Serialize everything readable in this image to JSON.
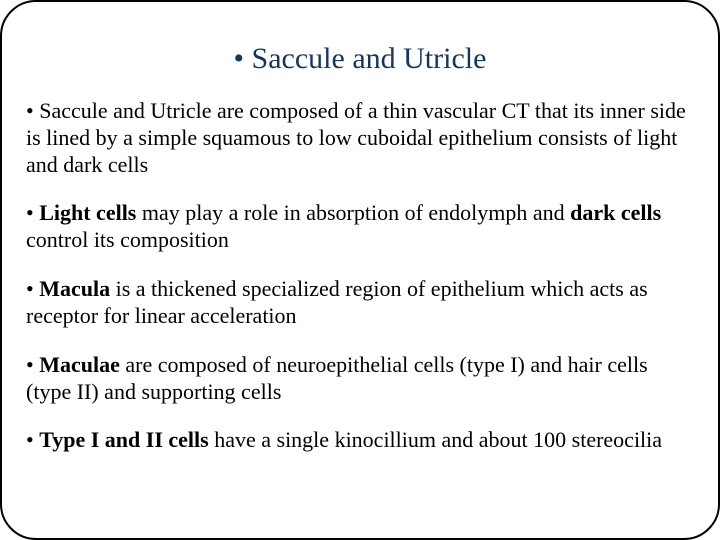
{
  "slide": {
    "title": "• Saccule and Utricle",
    "title_color": "#17365d",
    "title_fontsize": 30,
    "body_fontsize": 22,
    "text_color": "#000000",
    "background_color": "#ffffff",
    "border_color": "#000000",
    "border_radius": 36,
    "bullets": [
      {
        "prefix": "• ",
        "parts": [
          {
            "text": "Saccule and Utricle are composed of a thin vascular CT that its inner side is lined by a simple squamous to low cuboidal epithelium consists of light and dark cells",
            "bold": false
          }
        ]
      },
      {
        "prefix": "• ",
        "parts": [
          {
            "text": "Light cells",
            "bold": true
          },
          {
            "text": " may play a role in absorption of endolymph and ",
            "bold": false
          },
          {
            "text": "dark cells",
            "bold": true
          },
          {
            "text": " control its composition",
            "bold": false
          }
        ]
      },
      {
        "prefix": "• ",
        "parts": [
          {
            "text": "Macula",
            "bold": true
          },
          {
            "text": " is a thickened specialized region of epithelium which acts as receptor for linear acceleration",
            "bold": false
          }
        ]
      },
      {
        "prefix": "• ",
        "parts": [
          {
            "text": "Maculae",
            "bold": true
          },
          {
            "text": " are composed of neuroepithelial cells (type I) and hair cells (type II) and supporting cells",
            "bold": false
          }
        ]
      },
      {
        "prefix": "• ",
        "parts": [
          {
            "text": "Type I and II cells",
            "bold": true
          },
          {
            "text": " have a single kinocillium and about 100 stereocilia",
            "bold": false
          }
        ]
      }
    ]
  }
}
